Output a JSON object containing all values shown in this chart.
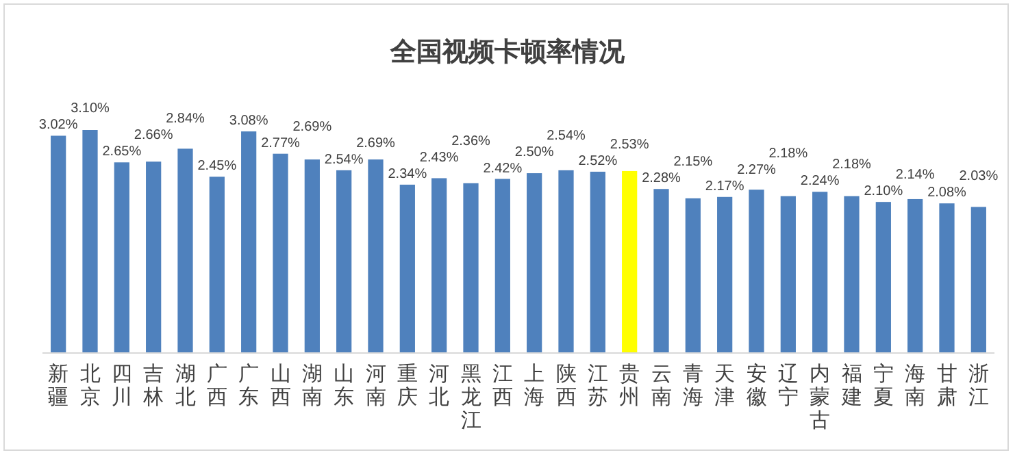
{
  "chart_data": {
    "type": "bar",
    "title": "全国视频卡顿率情况",
    "categories": [
      "新疆",
      "北京",
      "四川",
      "吉林",
      "湖北",
      "广西",
      "广东",
      "山西",
      "湖南",
      "山东",
      "河南",
      "重庆",
      "河北",
      "黑龙江",
      "江西",
      "上海",
      "陕西",
      "江苏",
      "贵州",
      "云南",
      "青海",
      "天津",
      "安徽",
      "辽宁",
      "内蒙古",
      "福建",
      "宁夏",
      "海南",
      "甘肃",
      "浙江"
    ],
    "values": [
      3.02,
      3.1,
      2.65,
      2.66,
      2.84,
      2.45,
      3.08,
      2.77,
      2.69,
      2.54,
      2.69,
      2.34,
      2.43,
      2.36,
      2.42,
      2.5,
      2.54,
      2.52,
      2.53,
      2.28,
      2.15,
      2.17,
      2.27,
      2.18,
      2.24,
      2.18,
      2.1,
      2.14,
      2.08,
      2.03
    ],
    "value_labels": [
      "3.02%",
      "3.10%",
      "2.65%",
      "2.66%",
      "2.84%",
      "2.45%",
      "3.08%",
      "2.77%",
      "2.69%",
      "2.54%",
      "2.69%",
      "2.34%",
      "2.43%",
      "2.36%",
      "2.42%",
      "2.50%",
      "2.54%",
      "2.52%",
      "2.53%",
      "2.28%",
      "2.15%",
      "2.17%",
      "2.27%",
      "2.18%",
      "2.24%",
      "2.18%",
      "2.10%",
      "2.14%",
      "2.08%",
      "2.03%"
    ],
    "colors": [
      "#4f81bd",
      "#4f81bd",
      "#4f81bd",
      "#4f81bd",
      "#4f81bd",
      "#4f81bd",
      "#4f81bd",
      "#4f81bd",
      "#4f81bd",
      "#4f81bd",
      "#4f81bd",
      "#4f81bd",
      "#4f81bd",
      "#4f81bd",
      "#4f81bd",
      "#4f81bd",
      "#4f81bd",
      "#4f81bd",
      "#ffff00",
      "#4f81bd",
      "#4f81bd",
      "#4f81bd",
      "#4f81bd",
      "#4f81bd",
      "#4f81bd",
      "#4f81bd",
      "#4f81bd",
      "#4f81bd",
      "#4f81bd",
      "#4f81bd"
    ]
  }
}
